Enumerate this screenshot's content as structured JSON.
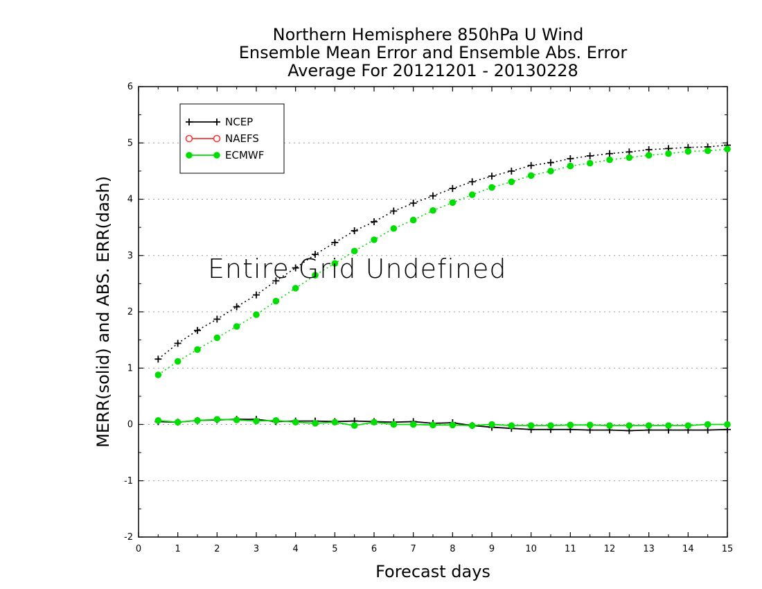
{
  "chart_data": {
    "type": "line",
    "title": [
      "Northern Hemisphere 850hPa U Wind",
      "Ensemble Mean Error and Ensemble Abs. Error",
      "Average For 20121201 - 20130228"
    ],
    "xlabel": "Forecast days",
    "ylabel": "MERR(solid) and ABS. ERR(dash)",
    "xlim": [
      0,
      15
    ],
    "ylim": [
      -2,
      6
    ],
    "xticks": [
      "0",
      "1",
      "2",
      "3",
      "4",
      "5",
      "6",
      "7",
      "8",
      "9",
      "10",
      "11",
      "12",
      "13",
      "14",
      "15"
    ],
    "yticks": [
      "-2",
      "-1",
      "0",
      "1",
      "2",
      "3",
      "4",
      "5",
      "6"
    ],
    "grid": "horizontal dotted",
    "legend_position": "top-left",
    "annotation": "Entire Grid Undefined",
    "x": [
      0.5,
      1,
      1.5,
      2,
      2.5,
      3,
      3.5,
      4,
      4.5,
      5,
      5.5,
      6,
      6.5,
      7,
      7.5,
      8,
      8.5,
      9,
      9.5,
      10,
      10.5,
      11,
      11.5,
      12,
      12.5,
      13,
      13.5,
      14,
      14.5,
      15
    ],
    "series": [
      {
        "name": "NCEP",
        "color": "#000000",
        "marker": "plus",
        "merr": [
          0.05,
          0.04,
          0.07,
          0.08,
          0.09,
          0.09,
          0.05,
          0.06,
          0.06,
          0.05,
          0.06,
          0.05,
          0.04,
          0.05,
          0.02,
          0.03,
          -0.02,
          -0.05,
          -0.07,
          -0.09,
          -0.09,
          -0.09,
          -0.1,
          -0.1,
          -0.11,
          -0.1,
          -0.1,
          -0.1,
          -0.1,
          -0.09
        ],
        "abs_err": [
          1.16,
          1.44,
          1.67,
          1.87,
          2.09,
          2.3,
          2.55,
          2.78,
          3.02,
          3.23,
          3.44,
          3.6,
          3.79,
          3.93,
          4.06,
          4.19,
          4.31,
          4.41,
          4.5,
          4.6,
          4.65,
          4.72,
          4.77,
          4.81,
          4.84,
          4.88,
          4.9,
          4.92,
          4.93,
          4.96
        ]
      },
      {
        "name": "NAEFS",
        "color": "#ff3333",
        "marker": "open-circle",
        "merr": [],
        "abs_err": []
      },
      {
        "name": "ECMWF",
        "color": "#00dd00",
        "marker": "filled-circle",
        "merr": [
          0.07,
          0.04,
          0.07,
          0.09,
          0.08,
          0.06,
          0.07,
          0.04,
          0.02,
          0.04,
          -0.02,
          0.04,
          0.0,
          0.0,
          -0.01,
          -0.01,
          -0.02,
          0.0,
          -0.02,
          -0.02,
          -0.02,
          -0.01,
          -0.01,
          -0.02,
          -0.02,
          -0.02,
          -0.02,
          -0.02,
          0.0,
          0.0
        ],
        "abs_err": [
          0.88,
          1.12,
          1.33,
          1.54,
          1.74,
          1.95,
          2.19,
          2.42,
          2.65,
          2.86,
          3.08,
          3.28,
          3.48,
          3.63,
          3.8,
          3.94,
          4.08,
          4.21,
          4.31,
          4.42,
          4.5,
          4.59,
          4.64,
          4.7,
          4.74,
          4.78,
          4.81,
          4.85,
          4.86,
          4.89
        ]
      }
    ]
  }
}
